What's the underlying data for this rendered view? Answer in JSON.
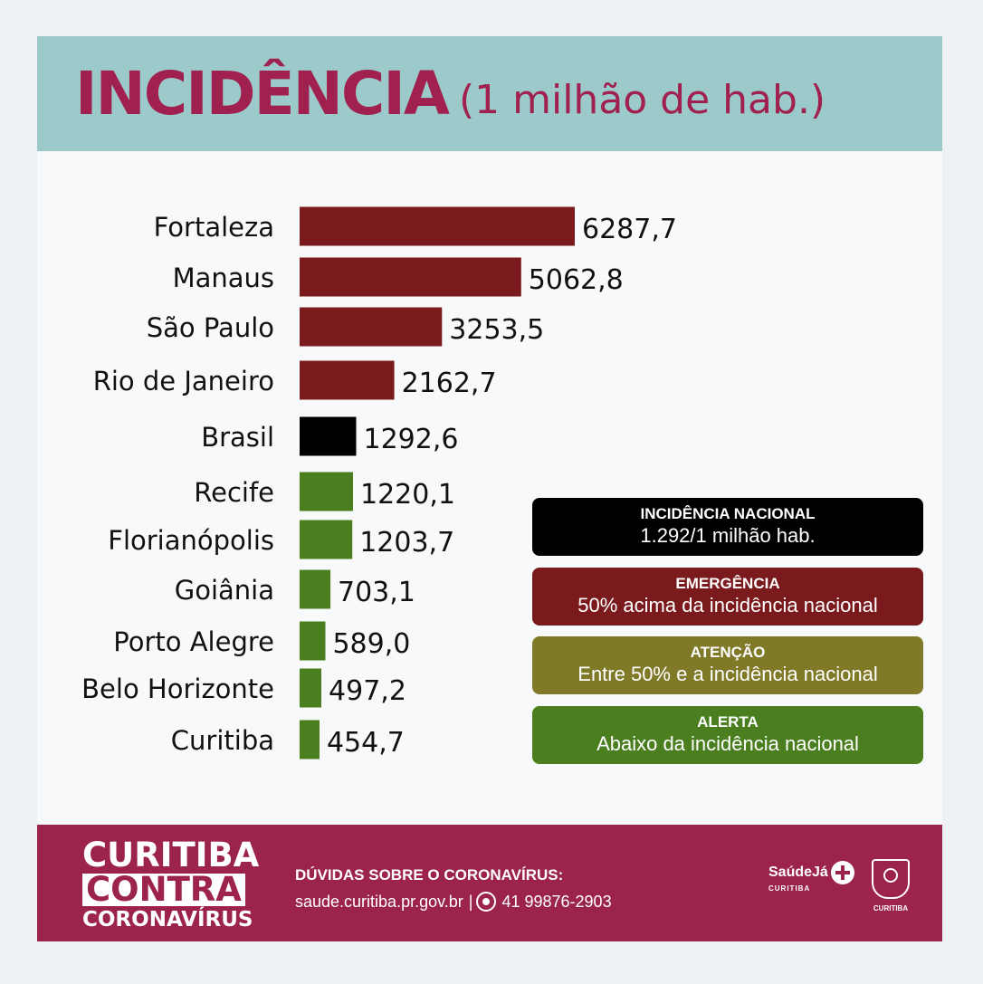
{
  "header": {
    "title": "INCIDÊNCIA",
    "subtitle": "(1 milhão de hab.)"
  },
  "chart_data": {
    "type": "bar",
    "orientation": "horizontal",
    "categories": [
      "Fortaleza",
      "Manaus",
      "São Paulo",
      "Rio de Janeiro",
      "Brasil",
      "Recife",
      "Florianópolis",
      "Goiânia",
      "Porto Alegre",
      "Belo Horizonte",
      "Curitiba"
    ],
    "values": [
      6287.7,
      5062.8,
      3253.5,
      2162.7,
      1292.6,
      1220.1,
      1203.7,
      703.1,
      589.0,
      497.2,
      454.7
    ],
    "value_labels": [
      "6287,7",
      "5062,8",
      "3253,5",
      "2162,7",
      "1292,6",
      "1220,1",
      "1203,7",
      "703,1",
      "589,0",
      "497,2",
      "454,7"
    ],
    "bar_colors": [
      "#7a1a1d",
      "#7a1a1d",
      "#7a1a1d",
      "#7a1a1d",
      "#000000",
      "#4a7e1f",
      "#4a7e1f",
      "#4a7e1f",
      "#4a7e1f",
      "#4a7e1f",
      "#4a7e1f"
    ],
    "grid": false
  },
  "legend": [
    {
      "title": "INCIDÊNCIA NACIONAL",
      "desc": "1.292/1 milhão hab.",
      "color": "#000000"
    },
    {
      "title": "EMERGÊNCIA",
      "desc": "50% acima da incidência nacional",
      "color": "#7a1a1d"
    },
    {
      "title": "ATENÇÃO",
      "desc": "Entre 50% e a incidência nacional",
      "color": "#807a28"
    },
    {
      "title": "ALERTA",
      "desc": "Abaixo da incidência nacional",
      "color": "#4a7e1f"
    }
  ],
  "footer": {
    "logo_line1": "CURITIBA",
    "logo_line2": "CONTRA",
    "logo_line3": "CORONAVÍRUS",
    "contact_title": "DÚVIDAS SOBRE O CORONAVÍRUS:",
    "contact_site": "saude.curitiba.pr.gov.br",
    "contact_sep": "|",
    "contact_phone": "41 99876-2903",
    "saude_brand": "SaúdeJá",
    "saude_city": "CURITIBA",
    "crest_label": "CURITIBA",
    "whatsapp_icon": "whatsapp-icon"
  }
}
